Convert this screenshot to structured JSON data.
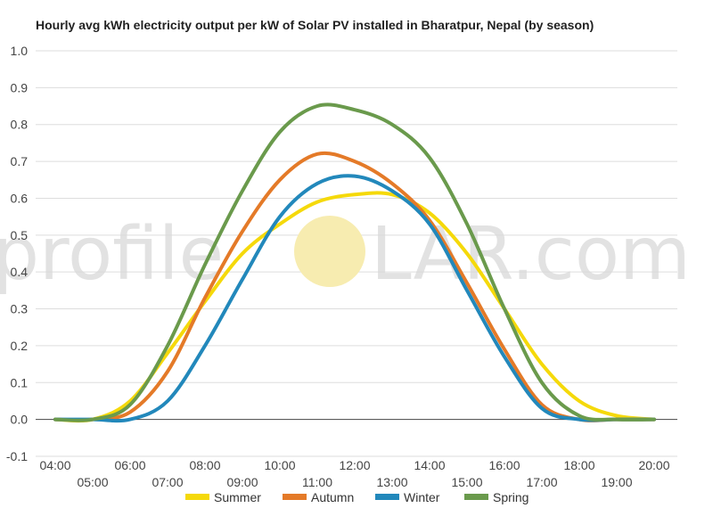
{
  "chart_data": {
    "type": "line",
    "title": "Hourly avg kWh electricity output per kW of Solar PV installed in Bharatpur, Nepal (by season)",
    "xlabel": "",
    "ylabel": "",
    "ylim": [
      -0.1,
      1.0
    ],
    "yticks": [
      "1.0",
      "0.9",
      "0.8",
      "0.7",
      "0.6",
      "0.5",
      "0.4",
      "0.3",
      "0.2",
      "0.1",
      "0.0",
      "-0.1"
    ],
    "grid": true,
    "legend": "bottom",
    "x": [
      "04:00",
      "05:00",
      "06:00",
      "07:00",
      "08:00",
      "09:00",
      "10:00",
      "11:00",
      "12:00",
      "13:00",
      "14:00",
      "15:00",
      "16:00",
      "17:00",
      "18:00",
      "19:00",
      "20:00"
    ],
    "series": [
      {
        "name": "Summer",
        "color": "#f5d90a",
        "values": [
          0.0,
          0.0,
          0.05,
          0.18,
          0.32,
          0.45,
          0.53,
          0.59,
          0.61,
          0.61,
          0.56,
          0.45,
          0.3,
          0.15,
          0.05,
          0.01,
          0.0
        ]
      },
      {
        "name": "Autumn",
        "color": "#e47a28",
        "values": [
          0.0,
          0.0,
          0.02,
          0.13,
          0.33,
          0.51,
          0.65,
          0.72,
          0.7,
          0.64,
          0.54,
          0.37,
          0.19,
          0.04,
          0.0,
          0.0,
          0.0
        ]
      },
      {
        "name": "Winter",
        "color": "#2288bb",
        "values": [
          0.0,
          0.0,
          0.0,
          0.05,
          0.2,
          0.38,
          0.55,
          0.64,
          0.66,
          0.62,
          0.53,
          0.35,
          0.17,
          0.03,
          0.0,
          0.0,
          0.0
        ]
      },
      {
        "name": "Spring",
        "color": "#6a9a4c",
        "values": [
          0.0,
          0.0,
          0.04,
          0.2,
          0.42,
          0.62,
          0.78,
          0.85,
          0.84,
          0.8,
          0.71,
          0.53,
          0.3,
          0.1,
          0.01,
          0.0,
          0.0
        ]
      }
    ]
  },
  "watermark": {
    "left": "profile",
    "right": "LAR.com",
    "sun_color": "#f7ecb0"
  }
}
